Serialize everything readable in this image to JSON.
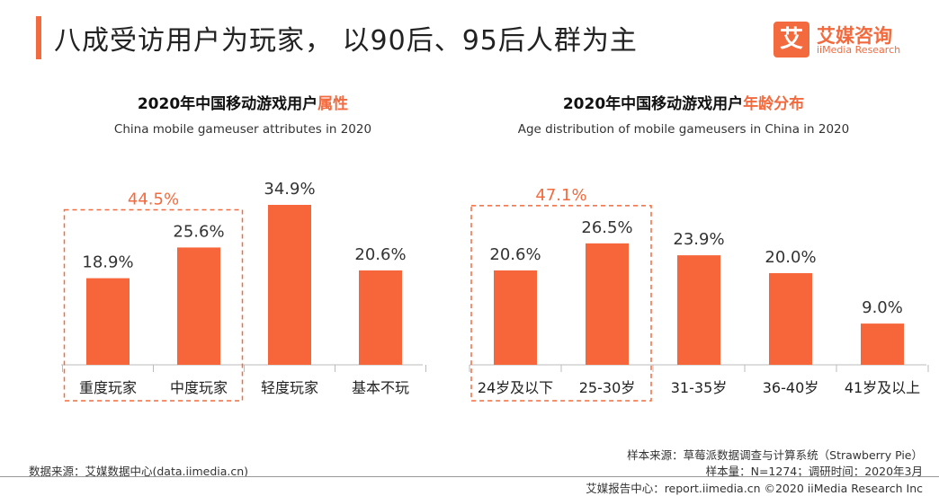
{
  "page": {
    "title": "八成受访用户为玩家， 以90后、95后人群为主"
  },
  "logo": {
    "cn": "艾媒咨询",
    "en": "iiMedia Research",
    "mark": "艾"
  },
  "footer": {
    "source": "数据来源：艾媒数据中心(data.iimedia.cn)",
    "sample_source": "样本来源：草莓派数据调查与计算系统（Strawberry Pie）",
    "sample_info": "样本量：N=1274；调研时间：2020年3月",
    "copyright": "艾媒报告中心：report.iimedia.cn ©2020 iiMedia Research Inc"
  },
  "colors": {
    "accent": "#f26a3d",
    "bar": "#f7663a",
    "axis": "#bbbbbb"
  },
  "chart_data": [
    {
      "type": "bar",
      "title": "2020年中国移动游戏用户",
      "title_highlight": "属性",
      "subtitle": "China mobile gameuser attributes in 2020",
      "categories": [
        "重度玩家",
        "中度玩家",
        "轻度玩家",
        "基本不玩"
      ],
      "values": [
        18.9,
        25.6,
        34.9,
        20.6
      ],
      "value_labels": [
        "18.9%",
        "25.6%",
        "34.9%",
        "20.6%"
      ],
      "ylim": [
        0,
        40
      ],
      "group": {
        "members": [
          0,
          1
        ],
        "label": "44.5%"
      }
    },
    {
      "type": "bar",
      "title": "2020年中国移动游戏用户",
      "title_highlight": "年龄分布",
      "subtitle": "Age distribution of mobile gameusers in China in 2020",
      "categories": [
        "24岁及以下",
        "25-30岁",
        "31-35岁",
        "36-40岁",
        "41岁及以上"
      ],
      "values": [
        20.6,
        26.5,
        23.9,
        20.0,
        9.0
      ],
      "value_labels": [
        "20.6%",
        "26.5%",
        "23.9%",
        "20.0%",
        "9.0%"
      ],
      "ylim": [
        0,
        40
      ],
      "group": {
        "members": [
          0,
          1
        ],
        "label": "47.1%"
      }
    }
  ]
}
